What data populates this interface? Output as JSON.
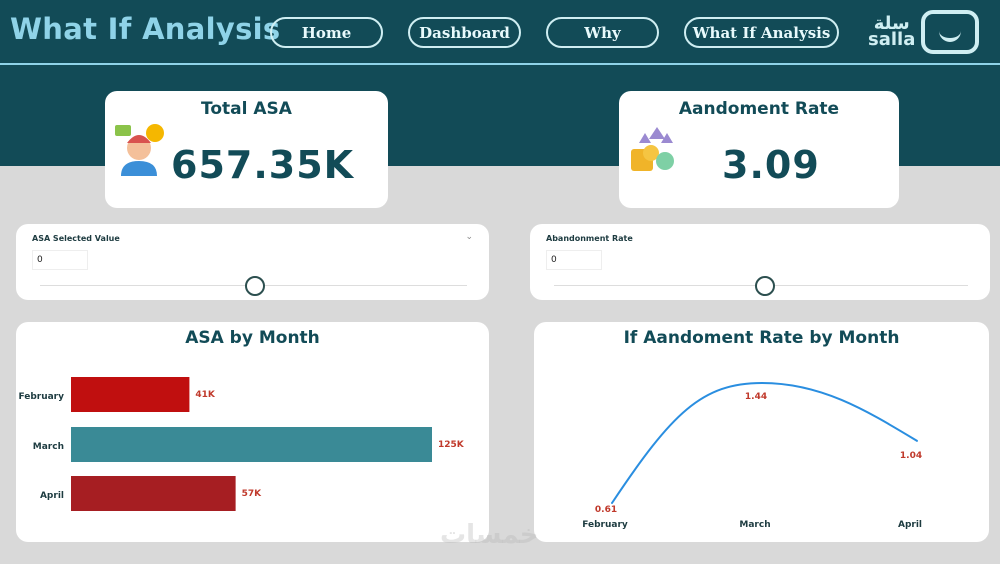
{
  "header": {
    "title": "What If Analysis",
    "nav": [
      "Home",
      "Dashboard",
      "Why",
      "What If Analysis"
    ],
    "logo": {
      "arabic": "سلة",
      "latin": "salla"
    }
  },
  "kpis": [
    {
      "title": "Total ASA",
      "value": "657.35K",
      "icon": "call-center-agent-icon"
    },
    {
      "title": "Aandoment Rate",
      "value": "3.09",
      "icon": "coins-growth-icon"
    }
  ],
  "sliders": [
    {
      "label": "ASA Selected Value",
      "value": "0",
      "level": 0.5
    },
    {
      "label": "Abandonment Rate",
      "value": "0",
      "level": 0.5
    }
  ],
  "chart_data": [
    {
      "type": "bar",
      "title": "ASA by Month",
      "orientation": "horizontal",
      "categories": [
        "February",
        "March",
        "April"
      ],
      "values": [
        41000,
        125000,
        57000
      ],
      "data_labels": [
        "41K",
        "125K",
        "57K"
      ],
      "colors": [
        "#c00f0f",
        "#3a8a96",
        "#a61e22"
      ]
    },
    {
      "type": "line",
      "title": "If Aandoment Rate by Month",
      "categories": [
        "February",
        "March",
        "April"
      ],
      "values": [
        0.61,
        1.44,
        1.04
      ],
      "data_labels": [
        "0.61",
        "1.44",
        "1.04"
      ],
      "color": "#2a8ee0",
      "smooth": true
    }
  ],
  "watermark": "خمسات",
  "colors": {
    "header": "#124b57",
    "accent": "#8fd3e8",
    "label": "#c0392b"
  }
}
